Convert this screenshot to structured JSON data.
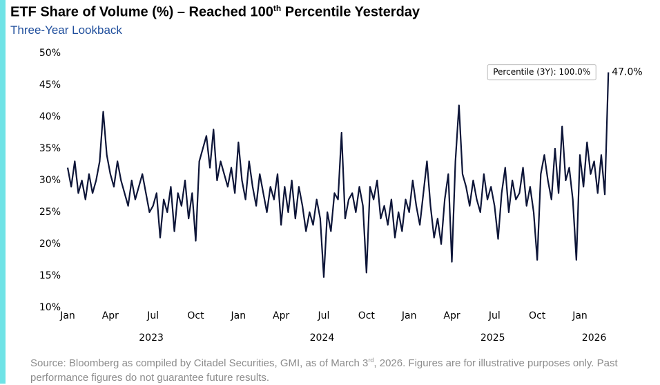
{
  "chart_data": {
    "type": "line",
    "title": [
      "ETF Share of Volume (%) – Reached 100",
      "th",
      " Percentile Yesterday"
    ],
    "subtitle": "Three-Year Lookback",
    "source": [
      "Source: Bloomberg as compiled by Citadel Securities, GMI, as of March 3",
      "rd",
      ", 2026. Figures are for illustrative purposes only. Past performance figures do not guarantee future results."
    ],
    "annotation": "Percentile (3Y): 100.0%",
    "color": "#0d1538",
    "ylim": [
      10,
      50
    ],
    "yticks": [
      {
        "value": 10,
        "label": "10%"
      },
      {
        "value": 15,
        "label": "15%"
      },
      {
        "value": 20,
        "label": "20%"
      },
      {
        "value": 25,
        "label": "25%"
      },
      {
        "value": 30,
        "label": "30%"
      },
      {
        "value": 35,
        "label": "35%"
      },
      {
        "value": 40,
        "label": "40%"
      },
      {
        "value": 45,
        "label": "45%"
      },
      {
        "value": 50,
        "label": "50%"
      }
    ],
    "year_labels": [
      "2023",
      "2024",
      "2025",
      "2026"
    ],
    "categories": [
      "Jan",
      null,
      null,
      null,
      null,
      null,
      null,
      null,
      null,
      null,
      null,
      null,
      "Apr",
      null,
      null,
      null,
      null,
      null,
      null,
      null,
      null,
      null,
      null,
      null,
      "Jul",
      null,
      null,
      null,
      null,
      null,
      null,
      null,
      null,
      null,
      null,
      null,
      "Oct",
      null,
      null,
      null,
      null,
      null,
      null,
      null,
      null,
      null,
      null,
      null,
      "Jan",
      null,
      null,
      null,
      null,
      null,
      null,
      null,
      null,
      null,
      null,
      null,
      "Apr",
      null,
      null,
      null,
      null,
      null,
      null,
      null,
      null,
      null,
      null,
      null,
      "Jul",
      null,
      null,
      null,
      null,
      null,
      null,
      null,
      null,
      null,
      null,
      null,
      "Oct",
      null,
      null,
      null,
      null,
      null,
      null,
      null,
      null,
      null,
      null,
      null,
      "Jan",
      null,
      null,
      null,
      null,
      null,
      null,
      null,
      null,
      null,
      null,
      null,
      "Apr",
      null,
      null,
      null,
      null,
      null,
      null,
      null,
      null,
      null,
      null,
      null,
      "Jul",
      null,
      null,
      null,
      null,
      null,
      null,
      null,
      null,
      null,
      null,
      null,
      "Oct",
      null,
      null,
      null,
      null,
      null,
      null,
      null,
      null,
      null,
      null,
      null,
      "Jan",
      null,
      null,
      null,
      null,
      null,
      null,
      null,
      null
    ],
    "values": [
      32,
      29,
      33,
      28,
      30,
      27,
      31,
      28,
      30,
      33,
      40.8,
      34,
      31,
      29,
      33,
      30,
      28,
      26,
      30,
      27,
      29,
      31,
      28,
      25,
      26,
      28,
      21,
      27,
      25,
      29,
      22,
      28,
      26,
      30,
      24,
      28,
      20.5,
      33,
      35,
      37,
      32,
      38,
      30,
      33,
      31,
      29,
      32,
      28,
      36,
      30,
      27,
      33,
      29,
      26,
      31,
      28,
      25,
      29,
      27,
      31,
      23,
      29,
      25,
      30,
      24,
      29,
      26,
      22,
      25,
      23,
      27,
      24,
      14.8,
      25,
      22,
      28,
      27,
      37.5,
      24,
      27,
      28,
      25,
      29,
      26,
      15.5,
      29,
      27,
      30,
      24,
      26,
      23,
      27,
      21,
      25,
      22,
      27,
      25,
      30,
      26,
      23,
      28,
      33,
      26,
      21,
      24,
      20,
      27,
      31,
      17.2,
      33,
      41.8,
      31,
      29,
      26,
      30,
      27,
      25,
      31,
      27,
      29,
      26,
      20.8,
      28,
      32,
      25,
      30,
      27,
      28,
      32,
      26,
      29,
      25,
      17.5,
      31,
      34,
      30,
      27,
      35,
      28,
      38.5,
      30,
      32,
      27,
      17.5,
      34,
      29,
      36,
      31,
      33,
      28,
      34,
      27.8,
      47.0
    ],
    "last_value_label": "47.0%"
  }
}
